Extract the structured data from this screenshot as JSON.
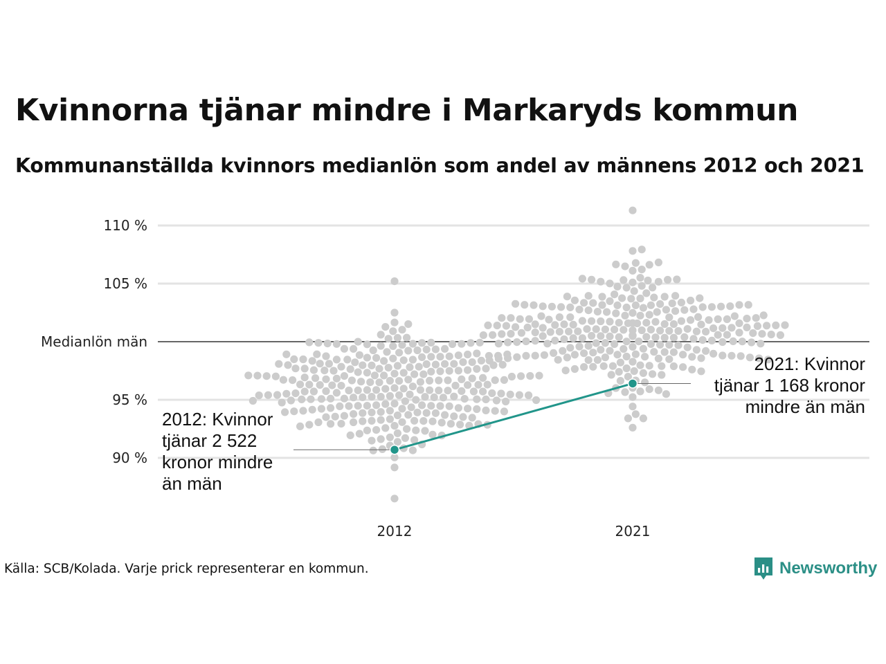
{
  "title": "Kvinnorna tjänar mindre i Markaryds kommun",
  "subtitle": "Kommunanställda kvinnors medianlön som andel av männens 2012 och 2021",
  "source": "Källa: SCB/Kolada. Varje prick representerar en kommun.",
  "brand": {
    "name": "Newsworthy",
    "color": "#2b8f86",
    "icon": "newsworthy-logo-icon"
  },
  "chart_data": {
    "type": "scatter",
    "variant": "beeswarm",
    "categories": [
      "2012",
      "2021"
    ],
    "y_ticks": [
      {
        "value": 90,
        "label": "90 %"
      },
      {
        "value": 95,
        "label": "95 %"
      },
      {
        "value": 100,
        "label": "Medianlön män"
      },
      {
        "value": 105,
        "label": "105 %"
      },
      {
        "value": 110,
        "label": "110 %"
      }
    ],
    "ylim": [
      86,
      112
    ],
    "grid": true,
    "reference_line": {
      "value": 100
    },
    "colors": {
      "dots": "#cccccc",
      "highlight": "#21958a",
      "grid": "#e3e3e3",
      "reference": "#333333"
    },
    "swarms": [
      {
        "category": "2012",
        "median": 96.0,
        "spread": 2.6,
        "min": 86.5,
        "max": 105.2,
        "count": 290
      },
      {
        "category": "2021",
        "median": 101.0,
        "spread": 2.5,
        "min": 92.6,
        "max": 111.3,
        "count": 290
      }
    ],
    "highlight": {
      "name": "Markaryds kommun",
      "points": [
        {
          "category": "2012",
          "value": 90.7
        },
        {
          "category": "2021",
          "value": 96.4
        }
      ]
    },
    "annotations": [
      {
        "category": "2012",
        "value": 90.7,
        "side": "left",
        "lines": [
          "2012: Kvinnor",
          "tjänar 2 522",
          "kronor mindre",
          "än män"
        ]
      },
      {
        "category": "2021",
        "value": 96.4,
        "side": "right",
        "lines": [
          "2021: Kvinnor",
          "tjänar 1 168 kronor",
          "mindre än män"
        ]
      }
    ]
  }
}
